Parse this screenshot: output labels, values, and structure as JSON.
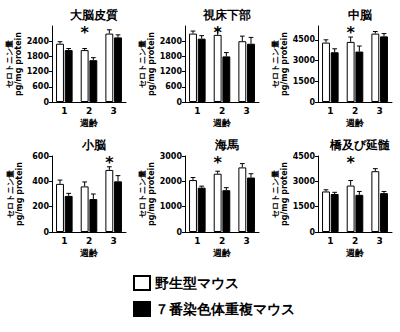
{
  "chart_data": [
    {
      "type": "bar",
      "title": "大脳皮質",
      "categories": [
        "1",
        "2",
        "3"
      ],
      "xlabel": "週齢",
      "ylabel": "セロトニン量\npg/mg protein",
      "series": [
        {
          "name": "野生型マウス",
          "color": "#ffffff",
          "values": [
            2300,
            2050,
            2700
          ],
          "errors": [
            80,
            60,
            150
          ]
        },
        {
          "name": "７番染色体重複マウス",
          "color": "#000000",
          "values": [
            2050,
            1650,
            2550
          ],
          "errors": [
            60,
            100,
            100
          ]
        }
      ],
      "ylim": [
        0,
        3000
      ],
      "yticks": [
        0,
        600,
        1200,
        1800,
        2400
      ],
      "grid": false,
      "legend": "bottom",
      "annotations": [
        {
          "text": "*",
          "category": "2"
        }
      ]
    },
    {
      "type": "bar",
      "title": "視床下部",
      "categories": [
        "1",
        "2",
        "3"
      ],
      "xlabel": "週齢",
      "ylabel": "セロトニン量\npg/mg protein",
      "series": [
        {
          "name": "野生型マウス",
          "color": "#ffffff",
          "values": [
            2700,
            2650,
            2400
          ],
          "errors": [
            100,
            220,
            200
          ]
        },
        {
          "name": "７番染色体重複マウス",
          "color": "#000000",
          "values": [
            2500,
            1800,
            2300
          ],
          "errors": [
            120,
            150,
            250
          ]
        }
      ],
      "ylim": [
        0,
        3000
      ],
      "yticks": [
        0,
        600,
        1200,
        1800,
        2400
      ],
      "grid": false,
      "legend": "bottom",
      "annotations": [
        {
          "text": "*",
          "category": "2"
        }
      ]
    },
    {
      "type": "bar",
      "title": "中脳",
      "categories": [
        "1",
        "2",
        "3"
      ],
      "xlabel": "週齢",
      "ylabel": "セロトニン量\npg/mg protein",
      "series": [
        {
          "name": "野生型マウス",
          "color": "#ffffff",
          "values": [
            4300,
            4350,
            4950
          ],
          "errors": [
            200,
            350,
            150
          ]
        },
        {
          "name": "７番染色体重複マウス",
          "color": "#000000",
          "values": [
            3600,
            3650,
            4750
          ],
          "errors": [
            250,
            400,
            200
          ]
        }
      ],
      "ylim": [
        0,
        5500
      ],
      "yticks": [
        0,
        1500,
        3000,
        4500
      ],
      "grid": false,
      "legend": "bottom",
      "annotations": [
        {
          "text": "*",
          "category": "2"
        }
      ]
    },
    {
      "type": "bar",
      "title": "小脳",
      "categories": [
        "1",
        "2",
        "3"
      ],
      "xlabel": "週齢",
      "ylabel": "セロトニン量\npg/mg protein",
      "series": [
        {
          "name": "野生型マウス",
          "color": "#ffffff",
          "values": [
            380,
            360,
            490
          ],
          "errors": [
            30,
            35,
            25
          ]
        },
        {
          "name": "７番染色体重複マウス",
          "color": "#000000",
          "values": [
            285,
            260,
            400
          ],
          "errors": [
            20,
            40,
            45
          ]
        }
      ],
      "ylim": [
        0,
        600
      ],
      "yticks": [
        0,
        200,
        400,
        600
      ],
      "grid": false,
      "legend": "bottom",
      "annotations": [
        {
          "text": "*",
          "category": "3"
        }
      ]
    },
    {
      "type": "bar",
      "title": "海馬",
      "categories": [
        "1",
        "2",
        "3"
      ],
      "xlabel": "週齢",
      "ylabel": "セロトニン量\npg/mg protein",
      "series": [
        {
          "name": "野生型マウス",
          "color": "#ffffff",
          "values": [
            2050,
            2300,
            2550
          ],
          "errors": [
            100,
            100,
            150
          ]
        },
        {
          "name": "７番染色体重複マウス",
          "color": "#000000",
          "values": [
            1750,
            1650,
            2150
          ],
          "errors": [
            60,
            100,
            150
          ]
        }
      ],
      "ylim": [
        0,
        3000
      ],
      "yticks": [
        0,
        1000,
        2000,
        3000
      ],
      "grid": false,
      "legend": "bottom",
      "annotations": [
        {
          "text": "*",
          "category": "2"
        }
      ]
    },
    {
      "type": "bar",
      "title": "橋及び延髄",
      "categories": [
        "1",
        "2",
        "3"
      ],
      "xlabel": "週齢",
      "ylabel": "セロトニン量\npg/mg protein",
      "series": [
        {
          "name": "野生型マウス",
          "color": "#ffffff",
          "values": [
            2400,
            2750,
            3600
          ],
          "errors": [
            100,
            300,
            150
          ]
        },
        {
          "name": "７番染色体重複マウス",
          "color": "#000000",
          "values": [
            2250,
            2200,
            2300
          ],
          "errors": [
            100,
            200,
            100
          ]
        }
      ],
      "ylim": [
        0,
        4500
      ],
      "yticks": [
        0,
        1500,
        3000,
        4500
      ],
      "grid": false,
      "legend": "bottom",
      "annotations": [
        {
          "text": "*",
          "category": "2"
        }
      ]
    }
  ]
}
